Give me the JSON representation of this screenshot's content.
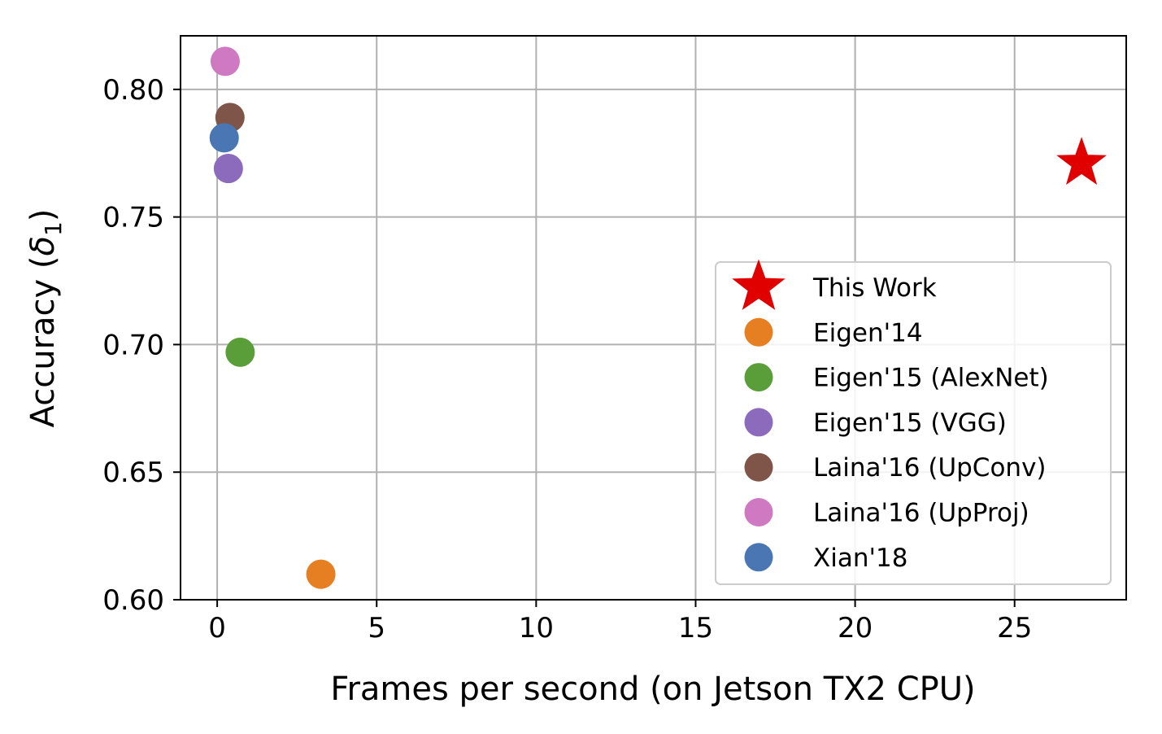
{
  "chart_data": {
    "type": "scatter",
    "title": "",
    "xlabel": "Frames per second (on Jetson TX2 CPU)",
    "ylabel_main": "Accuracy (",
    "ylabel_symbol": "δ",
    "ylabel_subscript": "1",
    "ylabel_close": ")",
    "xlim": [
      -1.15,
      28.5
    ],
    "ylim": [
      0.6,
      0.821
    ],
    "xticks": [
      0,
      5,
      10,
      15,
      20,
      25
    ],
    "xtick_labels": [
      "0",
      "5",
      "10",
      "15",
      "20",
      "25"
    ],
    "yticks": [
      0.6,
      0.65,
      0.7,
      0.75,
      0.8
    ],
    "ytick_labels": [
      "0.60",
      "0.65",
      "0.70",
      "0.75",
      "0.80"
    ],
    "grid": true,
    "legend_position": "lower-right",
    "series": [
      {
        "name": "This Work",
        "marker": "star",
        "color": "#e00000",
        "x": 27.1,
        "y": 0.771
      },
      {
        "name": "Eigen'14",
        "marker": "circle",
        "color": "#e67e22",
        "x": 3.25,
        "y": 0.61
      },
      {
        "name": "Eigen'15 (AlexNet)",
        "marker": "circle",
        "color": "#5a9e3a",
        "x": 0.72,
        "y": 0.697
      },
      {
        "name": "Eigen'15 (VGG)",
        "marker": "circle",
        "color": "#8c6bbd",
        "x": 0.35,
        "y": 0.769
      },
      {
        "name": "Laina'16 (UpConv)",
        "marker": "circle",
        "color": "#7f5549",
        "x": 0.4,
        "y": 0.789
      },
      {
        "name": "Laina'16 (UpProj)",
        "marker": "circle",
        "color": "#d079c3",
        "x": 0.25,
        "y": 0.811
      },
      {
        "name": "Xian'18",
        "marker": "circle",
        "color": "#4a76b4",
        "x": 0.22,
        "y": 0.781
      }
    ]
  }
}
